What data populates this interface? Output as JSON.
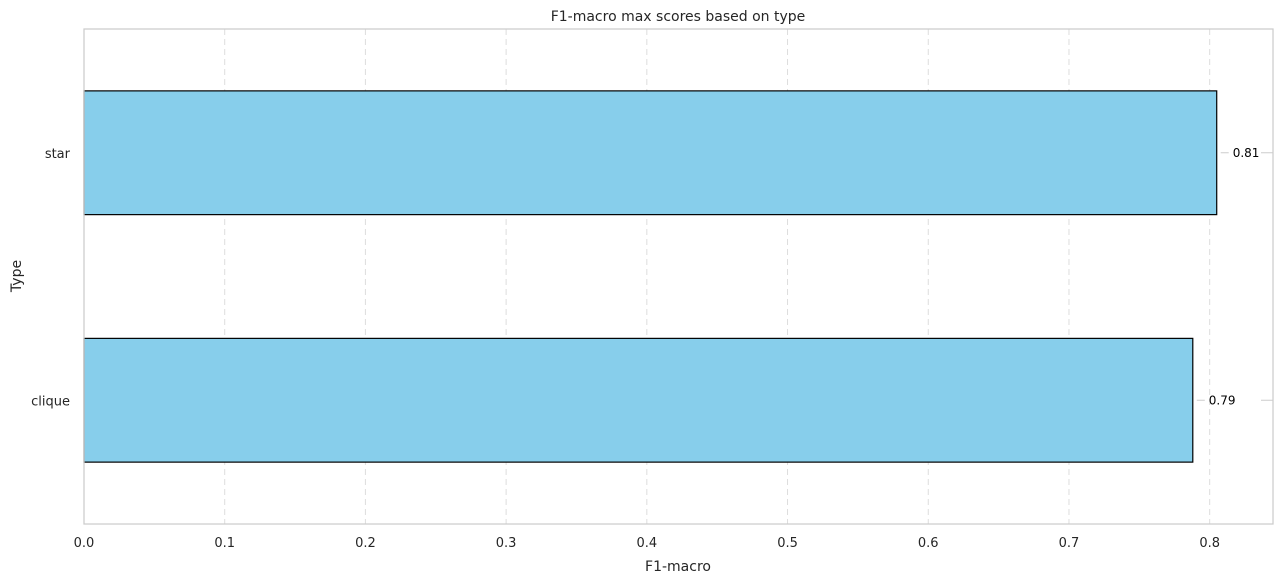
{
  "chart_data": {
    "type": "bar",
    "orientation": "horizontal",
    "title": "F1-macro max scores based on type",
    "xlabel": "F1-macro",
    "ylabel": "Type",
    "categories": [
      "star",
      "clique"
    ],
    "values": [
      0.805,
      0.788
    ],
    "data_labels": [
      "0.81",
      "0.79"
    ],
    "xlim": [
      0,
      0.845
    ],
    "xticks": [
      0.0,
      0.1,
      0.2,
      0.3,
      0.4,
      0.5,
      0.6,
      0.7,
      0.8
    ],
    "xtick_labels": [
      "0.0",
      "0.1",
      "0.2",
      "0.3",
      "0.4",
      "0.5",
      "0.6",
      "0.7",
      "0.8"
    ],
    "grid": "x dashed",
    "bar_color": "#87CEEB",
    "bar_edge_color": "#000000",
    "legend": "none"
  }
}
